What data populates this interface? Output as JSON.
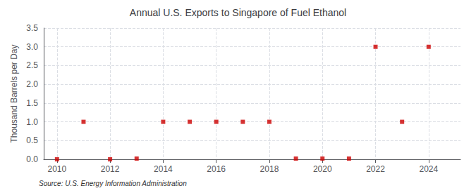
{
  "chart_data": {
    "type": "scatter",
    "title": "Annual U.S. Exports to Singapore of Fuel Ethanol",
    "ylabel": "Thousand Barrels per Day",
    "annotations": [
      "Source: U.S. Energy Information Administration"
    ],
    "x": [
      2010,
      2011,
      2012,
      2013,
      2014,
      2015,
      2016,
      2017,
      2018,
      2019,
      2020,
      2021,
      2022,
      2023,
      2024
    ],
    "values": [
      0.0,
      1.0,
      0.0,
      0.02,
      1.0,
      1.0,
      1.0,
      1.0,
      1.0,
      0.02,
      0.02,
      0.02,
      3.0,
      1.0,
      3.0
    ],
    "color": "#cc0000",
    "marker": "square",
    "xlim": [
      2009.5,
      2025.2
    ],
    "xticks": [
      2010,
      2012,
      2014,
      2016,
      2018,
      2020,
      2022,
      2024
    ],
    "ylim": [
      0.0,
      3.5
    ],
    "yticks": [
      {
        "value": 0.0,
        "label": "0.0"
      },
      0.5,
      {
        "value": 1.0,
        "label": "1.0"
      },
      1.5,
      {
        "value": 2.0,
        "label": "2.0"
      },
      2.5,
      {
        "value": 3.0,
        "label": "3.0"
      },
      3.5
    ],
    "grid": true
  }
}
